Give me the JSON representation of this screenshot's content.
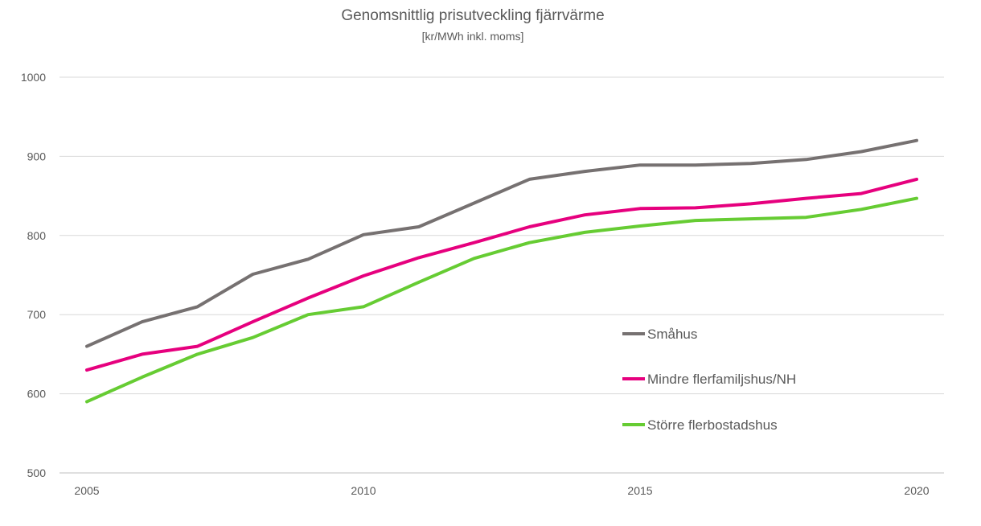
{
  "chart_data": {
    "type": "line",
    "title": "Genomsnittlig prisutveckling fjärrvärme",
    "subtitle": "[kr/MWh inkl. moms]",
    "xlabel": "",
    "ylabel": "",
    "x": [
      2005,
      2006,
      2007,
      2008,
      2009,
      2010,
      2011,
      2012,
      2013,
      2014,
      2015,
      2016,
      2017,
      2018,
      2019,
      2020
    ],
    "x_ticks": [
      "2005",
      "2010",
      "2015",
      "2020"
    ],
    "y_ticks": [
      "500",
      "600",
      "700",
      "800",
      "900",
      "1000"
    ],
    "xlim": [
      2005,
      2020
    ],
    "ylim": [
      500,
      1000
    ],
    "grid": "horizontal",
    "legend_position": "inside-right",
    "series": [
      {
        "name": "Småhus",
        "color": "#767171",
        "values": [
          660,
          691,
          710,
          751,
          770,
          801,
          811,
          841,
          871,
          881,
          889,
          889,
          891,
          896,
          906,
          920
        ]
      },
      {
        "name": "Mindre flerfamiljshus/NH",
        "color": "#e6007e",
        "values": [
          630,
          650,
          660,
          691,
          721,
          749,
          772,
          791,
          811,
          826,
          834,
          835,
          840,
          847,
          853,
          871
        ]
      },
      {
        "name": "Större flerbostadshus",
        "color": "#66cc33",
        "values": [
          590,
          621,
          650,
          671,
          700,
          710,
          741,
          771,
          791,
          804,
          812,
          819,
          821,
          823,
          833,
          847
        ]
      }
    ]
  }
}
